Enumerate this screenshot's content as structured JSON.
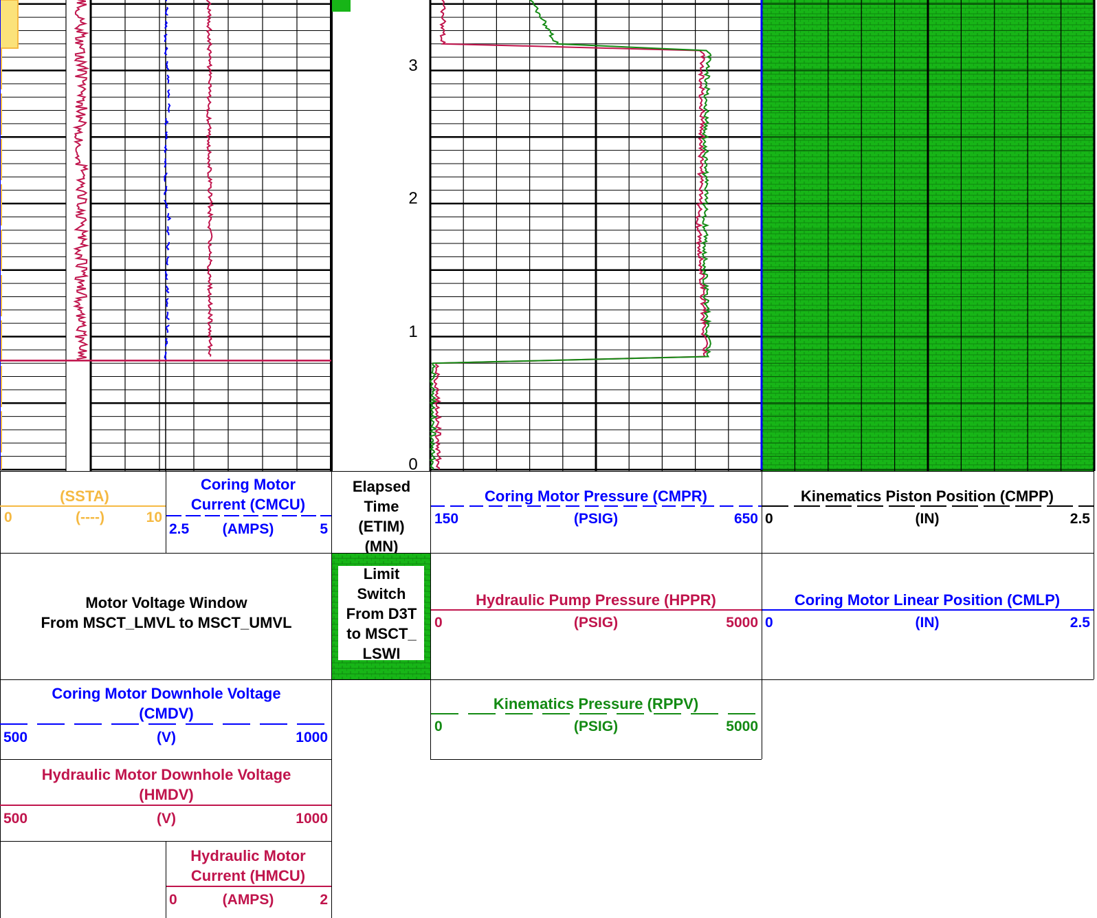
{
  "colors": {
    "orange": "#f5b942",
    "blue": "#0000ff",
    "crimson": "#c0144c",
    "green": "#138a13",
    "fill_green": "#17b517",
    "black": "#000000"
  },
  "depth_labels": [
    "3",
    "2",
    "1",
    "0"
  ],
  "headers": {
    "ssta": {
      "name": "(SSTA)",
      "left": "0",
      "unit": "(----)",
      "right": "10"
    },
    "cmcu": {
      "name_line1": "Coring Motor",
      "name_line2": "Current (CMCU)",
      "left": "2.5",
      "unit": "(AMPS)",
      "right": "5"
    },
    "etim": {
      "line1": "Elapsed",
      "line2": "Time",
      "line3": "(ETIM)",
      "line4": "(MN)"
    },
    "cmpr": {
      "name": "Coring Motor Pressure (CMPR)",
      "left": "150",
      "unit": "(PSIG)",
      "right": "650"
    },
    "cmpp": {
      "name": "Kinematics Piston Position (CMPP)",
      "left": "0",
      "unit": "(IN)",
      "right": "2.5"
    },
    "voltage_window": {
      "line1": "Motor Voltage Window",
      "line2": "From MSCT_LMVL to MSCT_UMVL"
    },
    "limit_switch": {
      "line1": "Limit",
      "line2": "Switch",
      "line3": "From D3T",
      "line4": "to MSCT_",
      "line5": "LSWI"
    },
    "hppr": {
      "name": "Hydraulic Pump Pressure (HPPR)",
      "left": "0",
      "unit": "(PSIG)",
      "right": "5000"
    },
    "cmlp": {
      "name": "Coring Motor Linear Position (CMLP)",
      "left": "0",
      "unit": "(IN)",
      "right": "2.5"
    },
    "cmdv": {
      "name_line1": "Coring Motor Downhole Voltage",
      "name_line2": "(CMDV)",
      "left": "500",
      "unit": "(V)",
      "right": "1000"
    },
    "rppv": {
      "name": "Kinematics Pressure (RPPV)",
      "left": "0",
      "unit": "(PSIG)",
      "right": "5000"
    },
    "hmdv": {
      "name_line1": "Hydraulic Motor Downhole Voltage",
      "name_line2": "(HMDV)",
      "left": "500",
      "unit": "(V)",
      "right": "1000"
    },
    "hmcu": {
      "name_line1": "Hydraulic Motor",
      "name_line2": "Current (HMCU)",
      "left": "0",
      "unit": "(AMPS)",
      "right": "2"
    }
  },
  "chart_data": {
    "type": "line",
    "y_axis": {
      "label": "Elapsed Time (ETIM) (MN)",
      "ticks": [
        0,
        1,
        2,
        3
      ],
      "range_visible": [
        0,
        3.55
      ]
    },
    "grid": true,
    "tracks": [
      {
        "track": "left",
        "series": [
          {
            "name": "(SSTA)",
            "color": "#f5b942",
            "range": [
              0,
              10
            ],
            "note_values": [
              [
                0,
                0
              ],
              [
                3.5,
                0
              ]
            ]
          },
          {
            "name": "Coring Motor Current (CMCU)",
            "color": "#0000ff",
            "range": [
              2.5,
              5
            ],
            "points": [
              [
                0.82,
                2.5
              ],
              [
                0.95,
                2.51
              ],
              [
                1.0,
                2.53
              ],
              [
                1.5,
                2.52
              ],
              [
                1.9,
                2.55
              ],
              [
                2.0,
                2.5
              ],
              [
                2.6,
                2.51
              ],
              [
                2.7,
                2.55
              ],
              [
                3.2,
                2.5
              ],
              [
                3.55,
                2.52
              ]
            ]
          },
          {
            "name": "Coring Motor Downhole Voltage (CMDV)",
            "color": "#0000ff",
            "range": [
              500,
              1000
            ],
            "points": [
              [
                0,
                500
              ],
              [
                0.82,
                500
              ],
              [
                3.55,
                500
              ]
            ]
          },
          {
            "name": "Hydraulic Motor Downhole Voltage (HMDV)",
            "color": "#c0144c",
            "range": [
              500,
              1000
            ],
            "points": [
              [
                0.82,
                500
              ],
              [
                0.82,
                1000
              ]
            ]
          },
          {
            "name": "Hydraulic Motor Current (HMCU)",
            "color": "#c0144c",
            "range": [
              0,
              2
            ],
            "points": [
              [
                0.85,
                0.54
              ],
              [
                1.5,
                0.53
              ],
              [
                2.0,
                0.54
              ],
              [
                2.7,
                0.52
              ],
              [
                3.1,
                0.53
              ],
              [
                3.55,
                0.52
              ]
            ]
          }
        ]
      },
      {
        "track": "middle",
        "series": [
          {
            "name": "Coring Motor Pressure (CMPR)",
            "color": "#0000ff",
            "range": [
              150,
              650
            ],
            "points": []
          },
          {
            "name": "Hydraulic Pump Pressure (HPPR)",
            "color": "#c0144c",
            "range": [
              0,
              5000
            ],
            "points": [
              [
                0,
                130
              ],
              [
                0.8,
                90
              ],
              [
                0.85,
                4150
              ],
              [
                1.5,
                4100
              ],
              [
                1.8,
                4050
              ],
              [
                2.5,
                4100
              ],
              [
                3.15,
                4100
              ],
              [
                3.2,
                180
              ],
              [
                3.55,
                200
              ]
            ]
          },
          {
            "name": "Kinematics Pressure (RPPV)",
            "color": "#138a13",
            "range": [
              0,
              5000
            ],
            "points": [
              [
                0,
                40
              ],
              [
                0.8,
                40
              ],
              [
                0.85,
                4200
              ],
              [
                1.5,
                4150
              ],
              [
                1.8,
                4150
              ],
              [
                2.5,
                4150
              ],
              [
                3.15,
                4200
              ],
              [
                3.2,
                1900
              ],
              [
                3.55,
                1500
              ]
            ]
          }
        ]
      },
      {
        "track": "right",
        "series": [
          {
            "name": "Kinematics Piston Position (CMPP)",
            "color": "#000000",
            "range": [
              0,
              2.5
            ],
            "points": [
              [
                0,
                0
              ],
              [
                3.55,
                0
              ]
            ]
          },
          {
            "name": "Coring Motor Linear Position (CMLP)",
            "color": "#0000ff",
            "range": [
              0,
              2.5
            ],
            "points": [
              [
                0,
                0
              ],
              [
                3.55,
                0
              ]
            ]
          }
        ]
      }
    ]
  }
}
